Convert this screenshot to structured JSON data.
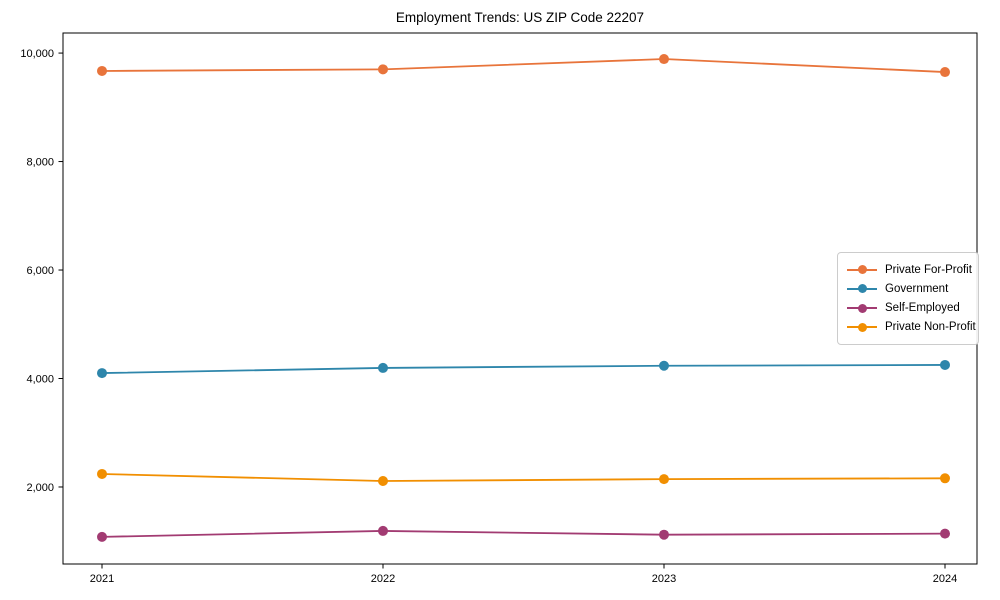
{
  "chart_data": {
    "type": "line",
    "title": "Employment Trends: US ZIP Code 22207",
    "x": [
      "2021",
      "2022",
      "2023",
      "2024"
    ],
    "series": [
      {
        "name": "Private For-Profit",
        "color": "#E8743B",
        "values": [
          9670,
          9700,
          9890,
          9650
        ]
      },
      {
        "name": "Government",
        "color": "#2E86AB",
        "values": [
          4100,
          4195,
          4235,
          4250
        ]
      },
      {
        "name": "Self-Employed",
        "color": "#A23B72",
        "values": [
          1080,
          1190,
          1120,
          1140
        ]
      },
      {
        "name": "Private Non-Profit",
        "color": "#F18F01",
        "values": [
          2240,
          2110,
          2145,
          2160
        ]
      }
    ],
    "xlabel": "",
    "ylabel": "",
    "ylim": [
      580,
      10370
    ],
    "yticks": [
      2000,
      4000,
      6000,
      8000,
      10000
    ],
    "ytick_labels": [
      "2,000",
      "4,000",
      "6,000",
      "8,000",
      "10,000"
    ],
    "xtick_labels": [
      "2021",
      "2022",
      "2023",
      "2024"
    ],
    "grid": false,
    "marker": "circle",
    "legend_position": "center-right",
    "axis_color": "#000000",
    "text_color": "#000000"
  }
}
